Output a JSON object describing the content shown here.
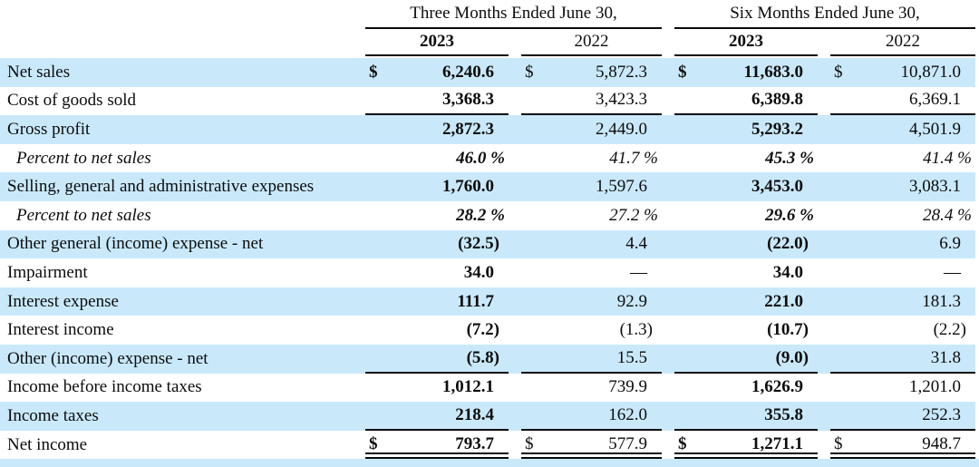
{
  "table": {
    "groups": [
      {
        "label": "Three Months Ended June 30,"
      },
      {
        "label": "Six Months Ended June 30,"
      }
    ],
    "years": [
      "2023",
      "2022",
      "2023",
      "2022"
    ],
    "bold_columns": [
      0,
      2
    ],
    "rows": [
      {
        "label": "Net sales",
        "values": [
          "6,240.6",
          "5,872.3",
          "11,683.0",
          "10,871.0"
        ],
        "dollar": true,
        "shaded": true
      },
      {
        "label": "Cost of goods sold",
        "values": [
          "3,368.3",
          "3,423.3",
          "6,389.8",
          "6,369.1"
        ],
        "underline": "single"
      },
      {
        "label": "Gross profit",
        "values": [
          "2,872.3",
          "2,449.0",
          "5,293.2",
          "4,501.9"
        ],
        "shaded": true
      },
      {
        "label": "Percent to net sales",
        "values": [
          "46.0 %",
          "41.7 %",
          "45.3 %",
          "41.4 %"
        ],
        "percent": true
      },
      {
        "label": "Selling, general and administrative expenses",
        "values": [
          "1,760.0",
          "1,597.6",
          "3,453.0",
          "3,083.1"
        ],
        "shaded": true
      },
      {
        "label": "Percent to net sales",
        "values": [
          "28.2 %",
          "27.2 %",
          "29.6 %",
          "28.4 %"
        ],
        "percent": true
      },
      {
        "label": "Other general (income) expense - net",
        "values": [
          "(32.5)",
          "4.4",
          "(22.0)",
          "6.9"
        ],
        "shaded": true
      },
      {
        "label": "Impairment",
        "values": [
          "34.0",
          "—",
          "34.0",
          "—"
        ]
      },
      {
        "label": "Interest expense",
        "values": [
          "111.7",
          "92.9",
          "221.0",
          "181.3"
        ],
        "shaded": true
      },
      {
        "label": "Interest income",
        "values": [
          "(7.2)",
          "(1.3)",
          "(10.7)",
          "(2.2)"
        ]
      },
      {
        "label": "Other (income) expense - net",
        "values": [
          "(5.8)",
          "15.5",
          "(9.0)",
          "31.8"
        ],
        "shaded": true,
        "underline": "single"
      },
      {
        "label": "Income before income taxes",
        "values": [
          "1,012.1",
          "739.9",
          "1,626.9",
          "1,201.0"
        ]
      },
      {
        "label": "Income taxes",
        "values": [
          "218.4",
          "162.0",
          "355.8",
          "252.3"
        ],
        "shaded": true,
        "underline": "single"
      },
      {
        "label": "Net income",
        "values": [
          "793.7",
          "577.9",
          "1,271.1",
          "948.7"
        ],
        "dollar": true,
        "underline": "double"
      }
    ]
  },
  "colors": {
    "row_shade": "#c9e9fb",
    "rule": "#0a0a0a"
  }
}
